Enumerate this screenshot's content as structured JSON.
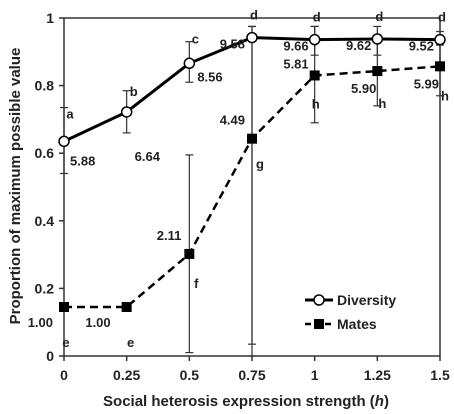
{
  "chart_data": {
    "type": "line",
    "xlabel_prefix": "Social heterosis expression  strength (",
    "xlabel_var": "h",
    "xlabel_suffix": ")",
    "ylabel": "Proportion of maximum possible value",
    "x": [
      0,
      0.25,
      0.5,
      0.75,
      1,
      1.25,
      1.5
    ],
    "x_tick_labels": [
      "0",
      "0.25",
      "0.5",
      "0.75",
      "1",
      "1.25",
      "1.5"
    ],
    "y_ticks": [
      0,
      0.2,
      0.4,
      0.6,
      0.8,
      1
    ],
    "y_tick_labels": [
      "0",
      "0.2",
      "0.4",
      "0.6",
      "0.8",
      "1"
    ],
    "xlim": [
      0,
      1.5
    ],
    "ylim": [
      0,
      1
    ],
    "grid": false,
    "legend_position": "bottom-right",
    "series": [
      {
        "name": "Diversity",
        "line_style": "solid",
        "marker": "open-circle",
        "values": [
          0.635,
          0.722,
          0.866,
          0.942,
          0.936,
          0.938,
          0.936
        ],
        "err_low": [
          0.54,
          0.66,
          0.81,
          0.0,
          0.89,
          0.89,
          0.92
        ],
        "err_high": [
          0.735,
          0.785,
          0.93,
          0.975,
          0.975,
          0.975,
          0.96
        ],
        "value_labels": [
          "5.88",
          "6.64",
          "8.56",
          "9.58",
          "9.66",
          "9.62",
          "9.52"
        ],
        "letters": [
          "a",
          "b",
          "c",
          "d",
          "d",
          "d",
          "d"
        ]
      },
      {
        "name": "Mates",
        "line_style": "dashed",
        "marker": "filled-square",
        "values": [
          0.145,
          0.145,
          0.302,
          0.643,
          0.83,
          0.843,
          0.857
        ],
        "err_low": [
          0.145,
          0.145,
          0.01,
          0.035,
          0.69,
          0.74,
          0.77
        ],
        "err_high": [
          0.145,
          0.145,
          0.595,
          0.975,
          0.975,
          0.935,
          0.93
        ],
        "value_labels": [
          "1.00",
          "1.00",
          "2.11",
          "4.49",
          "5.81",
          "5.90",
          "5.99"
        ],
        "letters": [
          "e",
          "e",
          "f",
          "g",
          "h",
          "h",
          "h"
        ]
      }
    ]
  }
}
